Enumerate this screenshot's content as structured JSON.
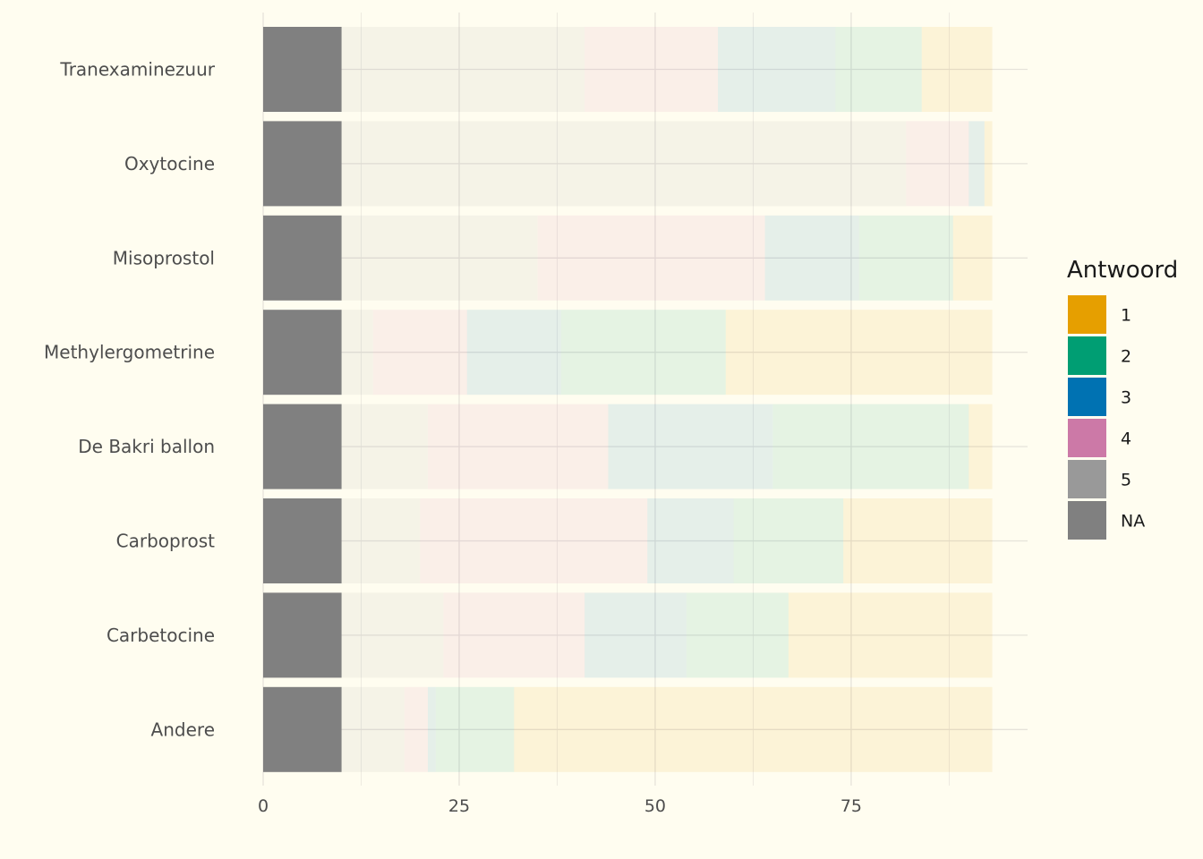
{
  "chart_data": {
    "type": "bar",
    "orientation": "horizontal",
    "stacked": true,
    "categories": [
      "Tranexaminezuur",
      "Oxytocine",
      "Misoprostol",
      "Methylergometrine",
      "De Bakri ballon",
      "Carboprost",
      "Carbetocine",
      "Andere"
    ],
    "series": [
      {
        "name": "NA",
        "color": "#808080",
        "opacity": 1.0,
        "values": [
          10,
          10,
          10,
          10,
          10,
          10,
          10,
          10
        ]
      },
      {
        "name": "5",
        "color": "#999999",
        "opacity": 0.1,
        "values": [
          31,
          72,
          25,
          4,
          11,
          10,
          13,
          8
        ]
      },
      {
        "name": "4",
        "color": "#CC79A7",
        "opacity": 0.1,
        "values": [
          17,
          8,
          29,
          12,
          23,
          29,
          18,
          3
        ]
      },
      {
        "name": "3",
        "color": "#0072B2",
        "opacity": 0.1,
        "values": [
          15,
          2,
          12,
          12,
          21,
          11,
          13,
          1
        ]
      },
      {
        "name": "2",
        "color": "#009E73",
        "opacity": 0.1,
        "values": [
          11,
          0,
          12,
          21,
          25,
          14,
          13,
          10
        ]
      },
      {
        "name": "1",
        "color": "#E69F00",
        "opacity": 0.1,
        "values": [
          9,
          1,
          5,
          34,
          3,
          19,
          26,
          61
        ]
      }
    ],
    "xlim": [
      0,
      97.5
    ],
    "xticks": [
      0,
      25,
      50,
      75
    ],
    "xlabel": "",
    "ylabel": "",
    "grid": true,
    "legend": {
      "title": "Antwoord",
      "position": "right",
      "items": [
        {
          "label": "1",
          "color": "#E69F00"
        },
        {
          "label": "2",
          "color": "#009E73"
        },
        {
          "label": "3",
          "color": "#0072B2"
        },
        {
          "label": "4",
          "color": "#CC79A7"
        },
        {
          "label": "5",
          "color": "#999999"
        },
        {
          "label": "NA",
          "color": "#808080"
        }
      ]
    }
  }
}
